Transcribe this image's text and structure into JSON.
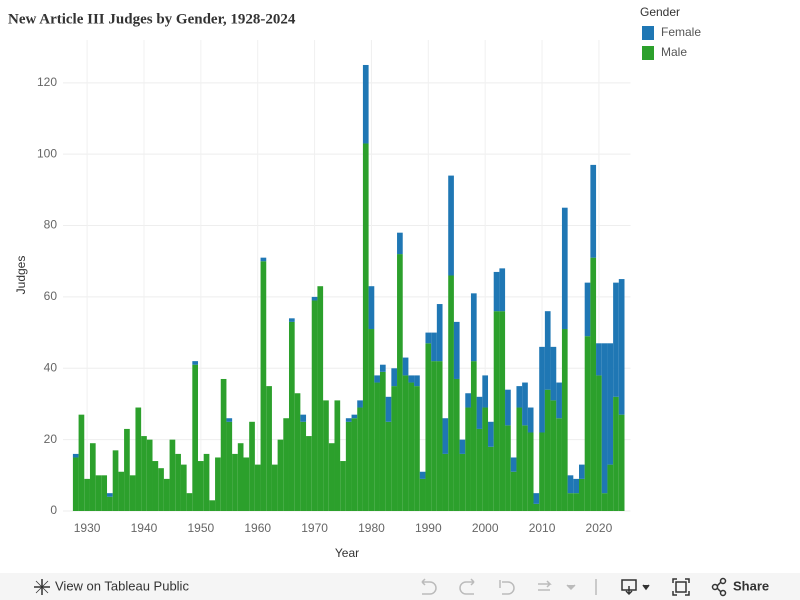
{
  "chart_data": {
    "type": "stacked_bar",
    "title": "New Article III Judges by Gender, 1928-2024",
    "x_label": "Year",
    "y_label": "Judges",
    "legend_title": "Gender",
    "x": [
      1928,
      1929,
      1930,
      1931,
      1932,
      1933,
      1934,
      1935,
      1936,
      1937,
      1938,
      1939,
      1940,
      1941,
      1942,
      1943,
      1944,
      1945,
      1946,
      1947,
      1948,
      1949,
      1950,
      1951,
      1952,
      1953,
      1954,
      1955,
      1956,
      1957,
      1958,
      1959,
      1960,
      1961,
      1962,
      1963,
      1964,
      1965,
      1966,
      1967,
      1968,
      1969,
      1970,
      1971,
      1972,
      1973,
      1974,
      1975,
      1976,
      1977,
      1978,
      1979,
      1980,
      1981,
      1982,
      1983,
      1984,
      1985,
      1986,
      1987,
      1988,
      1989,
      1990,
      1991,
      1992,
      1993,
      1994,
      1995,
      1996,
      1997,
      1998,
      1999,
      2000,
      2001,
      2002,
      2003,
      2004,
      2005,
      2006,
      2007,
      2008,
      2009,
      2010,
      2011,
      2012,
      2013,
      2014,
      2015,
      2016,
      2017,
      2018,
      2019,
      2020,
      2021,
      2022,
      2023,
      2024
    ],
    "series": [
      {
        "name": "Female",
        "color": "#1f77b4",
        "values": [
          1,
          0,
          0,
          0,
          0,
          0,
          1,
          0,
          0,
          0,
          0,
          0,
          0,
          0,
          0,
          0,
          0,
          0,
          0,
          0,
          0,
          1,
          0,
          0,
          0,
          0,
          0,
          1,
          0,
          0,
          0,
          0,
          0,
          1,
          0,
          0,
          0,
          0,
          1,
          0,
          2,
          0,
          1,
          0,
          0,
          0,
          0,
          0,
          1,
          1,
          2,
          22,
          12,
          2,
          2,
          7,
          5,
          6,
          5,
          2,
          3,
          2,
          3,
          8,
          16,
          10,
          28,
          16,
          4,
          4,
          19,
          9,
          9,
          7,
          11,
          12,
          10,
          4,
          6,
          12,
          7,
          3,
          24,
          22,
          15,
          10,
          34,
          5,
          4,
          4,
          15,
          26,
          9,
          42,
          34,
          32,
          38
        ]
      },
      {
        "name": "Male",
        "color": "#2ca02c",
        "values": [
          15,
          27,
          9,
          19,
          10,
          10,
          4,
          17,
          11,
          23,
          10,
          29,
          21,
          20,
          14,
          12,
          9,
          20,
          16,
          13,
          5,
          41,
          14,
          16,
          3,
          15,
          37,
          25,
          16,
          19,
          15,
          25,
          13,
          70,
          35,
          13,
          20,
          26,
          53,
          33,
          25,
          21,
          59,
          63,
          31,
          19,
          31,
          14,
          25,
          26,
          29,
          103,
          51,
          36,
          39,
          25,
          35,
          72,
          38,
          36,
          35,
          9,
          47,
          42,
          42,
          16,
          66,
          37,
          16,
          29,
          42,
          23,
          29,
          18,
          56,
          56,
          24,
          11,
          29,
          24,
          22,
          2,
          22,
          34,
          31,
          26,
          51,
          5,
          5,
          9,
          49,
          71,
          38,
          5,
          13,
          32,
          27
        ]
      }
    ],
    "xlim": [
      1927.5,
      2024.5
    ],
    "xticks": [
      1930,
      1940,
      1950,
      1960,
      1970,
      1980,
      1990,
      2000,
      2010,
      2020
    ],
    "ylim": [
      0,
      132
    ],
    "yticks": [
      0,
      20,
      40,
      60,
      80,
      100,
      120
    ],
    "grid": true,
    "legend": "right"
  },
  "toolbar": {
    "view": "View on Tableau Public",
    "share": "Share"
  }
}
